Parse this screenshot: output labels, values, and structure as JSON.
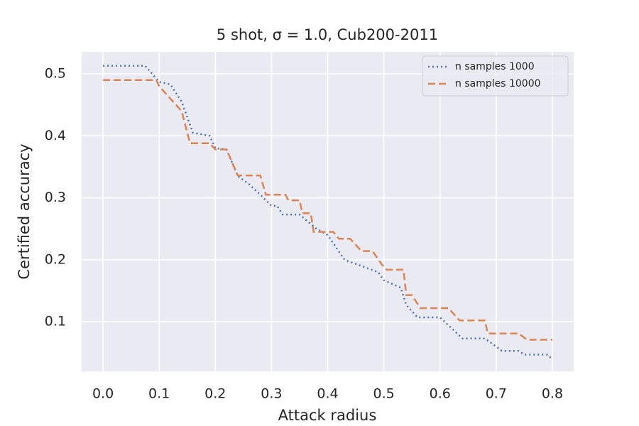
{
  "chart_data": {
    "type": "line",
    "title": "5 shot, σ = 1.0, Cub200-2011",
    "x_label": "Attack radius",
    "y_label": "Certified accuracy",
    "xlim": [
      -0.038,
      0.838
    ],
    "ylim": [
      0.02,
      0.5355
    ],
    "xticks": [
      {
        "value": 0,
        "label": "0.0"
      },
      0.1,
      0.2,
      0.3,
      0.4,
      0.5,
      0.6,
      0.7,
      0.8
    ],
    "yticks": [
      0.1,
      0.2,
      0.3,
      0.4,
      0.5
    ],
    "grid": true,
    "legend": "upper right",
    "series": [
      {
        "name": "n samples 1000",
        "color": "#4c72b0",
        "dash": "dotted",
        "x": [
          0,
          0.075,
          0.1,
          0.12,
          0.14,
          0.16,
          0.19,
          0.2,
          0.22,
          0.24,
          0.26,
          0.28,
          0.3,
          0.31,
          0.32,
          0.35,
          0.38,
          0.4,
          0.43,
          0.46,
          0.49,
          0.5,
          0.53,
          0.54,
          0.56,
          0.6,
          0.62,
          0.64,
          0.68,
          0.7,
          0.71,
          0.74,
          0.75,
          0.79,
          0.8
        ],
        "values": [
          0.513,
          0.513,
          0.487,
          0.483,
          0.455,
          0.405,
          0.4,
          0.38,
          0.378,
          0.335,
          0.322,
          0.305,
          0.287,
          0.287,
          0.273,
          0.273,
          0.25,
          0.24,
          0.2,
          0.19,
          0.18,
          0.167,
          0.155,
          0.127,
          0.107,
          0.107,
          0.09,
          0.073,
          0.073,
          0.06,
          0.053,
          0.053,
          0.047,
          0.047,
          0.04
        ]
      },
      {
        "name": "n samples 10000",
        "color": "#dd8452",
        "dash": "dashed",
        "x": [
          0,
          0.095,
          0.1,
          0.12,
          0.14,
          0.155,
          0.19,
          0.2,
          0.22,
          0.24,
          0.28,
          0.29,
          0.325,
          0.33,
          0.35,
          0.355,
          0.37,
          0.375,
          0.41,
          0.42,
          0.44,
          0.46,
          0.48,
          0.495,
          0.505,
          0.535,
          0.54,
          0.55,
          0.565,
          0.615,
          0.635,
          0.68,
          0.685,
          0.74,
          0.755,
          0.8
        ],
        "values": [
          0.49,
          0.49,
          0.48,
          0.46,
          0.44,
          0.388,
          0.388,
          0.378,
          0.378,
          0.336,
          0.336,
          0.305,
          0.305,
          0.296,
          0.296,
          0.275,
          0.275,
          0.245,
          0.245,
          0.234,
          0.234,
          0.214,
          0.214,
          0.194,
          0.184,
          0.184,
          0.143,
          0.143,
          0.122,
          0.122,
          0.102,
          0.102,
          0.081,
          0.081,
          0.071,
          0.071
        ]
      }
    ]
  }
}
